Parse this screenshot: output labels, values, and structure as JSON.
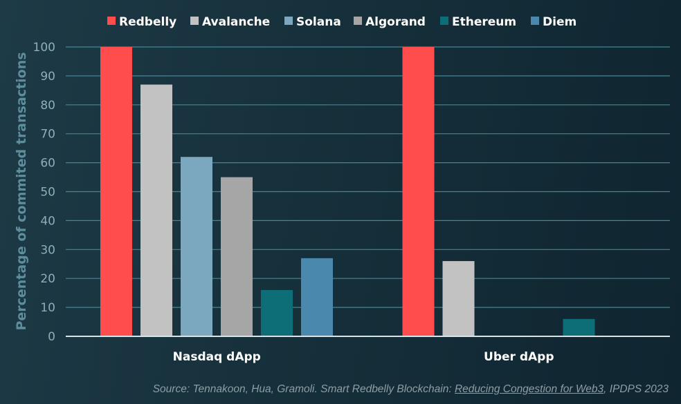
{
  "chart_data": {
    "type": "bar",
    "ylabel": "Percentage of commited transactions",
    "xlabel": "",
    "title": "",
    "ylim": [
      0,
      100
    ],
    "y_ticks": [
      0,
      10,
      20,
      30,
      40,
      50,
      60,
      70,
      80,
      90,
      100
    ],
    "grid": true,
    "legend_position": "top",
    "categories": [
      "Nasdaq dApp",
      "Uber dApp"
    ],
    "series": [
      {
        "name": "Redbelly",
        "color": "#ff4d4d",
        "values": [
          100,
          100
        ]
      },
      {
        "name": "Avalanche",
        "color": "#c2c2c2",
        "values": [
          87,
          26
        ]
      },
      {
        "name": "Solana",
        "color": "#7ba7bf",
        "values": [
          62,
          0
        ]
      },
      {
        "name": "Algorand",
        "color": "#a6a6a6",
        "values": [
          55,
          0
        ]
      },
      {
        "name": "Ethereum",
        "color": "#0e6e78",
        "values": [
          16,
          6
        ]
      },
      {
        "name": "Diem",
        "color": "#4a88ad",
        "values": [
          27,
          0
        ]
      }
    ],
    "source": {
      "prefix": "Source: Tennakoon, Hua, Gramoli. Smart Redbelly Blockchain: ",
      "link": "Reducing Congestion for Web3",
      "suffix": ", IPDPS 2023"
    }
  },
  "colors": {
    "gridline": "#3c8a97",
    "axis_text": "#90aeba",
    "ylabel_text": "#5e8e9c",
    "legend_text": "#ffffff",
    "category_text": "#ffffff"
  }
}
